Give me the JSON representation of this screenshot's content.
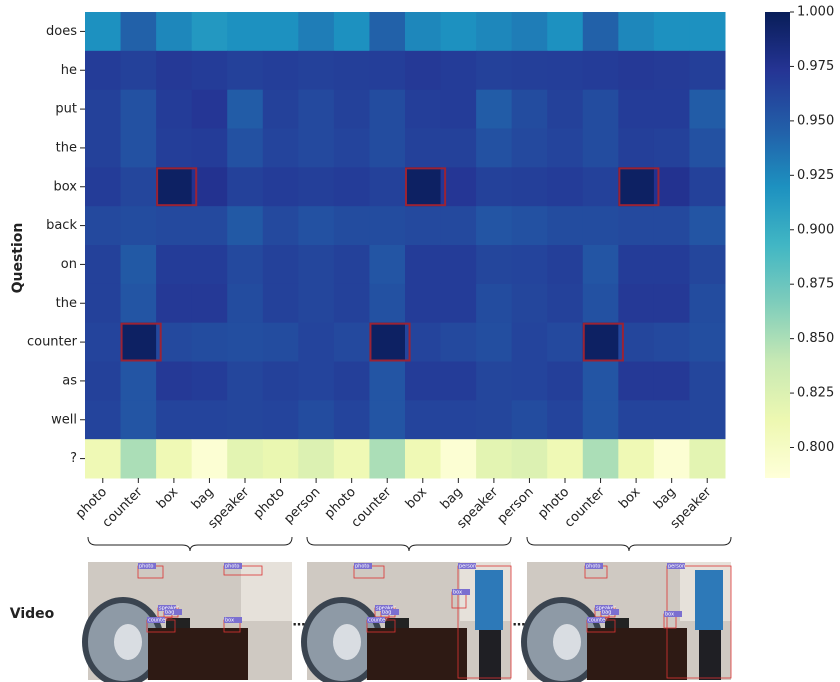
{
  "chart_data": {
    "type": "heatmap",
    "ylabel": "Question",
    "colormap": "YlGnBu",
    "categories": [
      "photo",
      "counter",
      "box",
      "bag",
      "speaker",
      "photo",
      "person",
      "photo",
      "counter",
      "box",
      "bag",
      "speaker",
      "person",
      "photo",
      "counter",
      "box",
      "bag",
      "speaker"
    ],
    "rows": [
      "does",
      "he",
      "put",
      "the",
      "box",
      "back",
      "on",
      "the",
      "counter",
      "as",
      "well",
      "?"
    ],
    "values": [
      [
        0.92,
        0.945,
        0.925,
        0.915,
        0.92,
        0.92,
        0.93,
        0.92,
        0.945,
        0.925,
        0.92,
        0.925,
        0.93,
        0.92,
        0.945,
        0.925,
        0.92,
        0.92
      ],
      [
        0.968,
        0.965,
        0.97,
        0.968,
        0.965,
        0.967,
        0.965,
        0.966,
        0.967,
        0.97,
        0.968,
        0.965,
        0.966,
        0.967,
        0.968,
        0.97,
        0.969,
        0.966
      ],
      [
        0.965,
        0.955,
        0.968,
        0.972,
        0.948,
        0.965,
        0.96,
        0.965,
        0.958,
        0.967,
        0.968,
        0.948,
        0.958,
        0.965,
        0.958,
        0.968,
        0.968,
        0.948
      ],
      [
        0.965,
        0.955,
        0.967,
        0.968,
        0.955,
        0.963,
        0.96,
        0.963,
        0.958,
        0.965,
        0.965,
        0.955,
        0.96,
        0.963,
        0.958,
        0.966,
        0.965,
        0.955
      ],
      [
        0.968,
        0.962,
        0.995,
        0.975,
        0.965,
        0.968,
        0.966,
        0.968,
        0.965,
        0.995,
        0.972,
        0.965,
        0.966,
        0.968,
        0.965,
        0.995,
        0.975,
        0.965
      ],
      [
        0.96,
        0.958,
        0.96,
        0.96,
        0.95,
        0.96,
        0.955,
        0.958,
        0.958,
        0.96,
        0.96,
        0.952,
        0.955,
        0.958,
        0.958,
        0.96,
        0.96,
        0.952
      ],
      [
        0.965,
        0.95,
        0.968,
        0.968,
        0.96,
        0.965,
        0.962,
        0.965,
        0.952,
        0.968,
        0.968,
        0.962,
        0.963,
        0.966,
        0.952,
        0.968,
        0.968,
        0.962
      ],
      [
        0.965,
        0.952,
        0.97,
        0.97,
        0.958,
        0.965,
        0.962,
        0.965,
        0.955,
        0.968,
        0.968,
        0.958,
        0.962,
        0.965,
        0.955,
        0.97,
        0.97,
        0.958
      ],
      [
        0.963,
        0.995,
        0.96,
        0.958,
        0.957,
        0.958,
        0.963,
        0.96,
        0.995,
        0.963,
        0.96,
        0.957,
        0.963,
        0.96,
        0.995,
        0.962,
        0.96,
        0.957
      ],
      [
        0.965,
        0.952,
        0.97,
        0.968,
        0.962,
        0.965,
        0.963,
        0.966,
        0.952,
        0.968,
        0.968,
        0.962,
        0.963,
        0.966,
        0.952,
        0.97,
        0.97,
        0.962
      ],
      [
        0.963,
        0.952,
        0.963,
        0.963,
        0.962,
        0.963,
        0.958,
        0.963,
        0.952,
        0.963,
        0.963,
        0.962,
        0.958,
        0.963,
        0.952,
        0.963,
        0.963,
        0.962
      ],
      [
        0.81,
        0.85,
        0.81,
        0.79,
        0.82,
        0.815,
        0.825,
        0.81,
        0.85,
        0.81,
        0.79,
        0.82,
        0.825,
        0.81,
        0.85,
        0.81,
        0.79,
        0.82
      ]
    ],
    "highlights": [
      [
        4,
        2
      ],
      [
        4,
        9
      ],
      [
        4,
        15
      ],
      [
        8,
        1
      ],
      [
        8,
        8
      ],
      [
        8,
        14
      ]
    ],
    "highlight_color": "#9b2335",
    "zlim": [
      0.786,
      1.0
    ],
    "zticks": [
      {
        "value": 0.8,
        "label": "0.800"
      },
      0.825,
      {
        "value": 0.85,
        "label": "0.850"
      },
      0.875,
      {
        "value": 0.9,
        "label": "0.900"
      },
      0.925,
      {
        "value": 0.95,
        "label": "0.950"
      },
      0.975,
      {
        "value": 1.0,
        "label": "1.000"
      }
    ]
  },
  "video": {
    "label": "Video",
    "frames": [
      {
        "boxes": [
          "photo",
          "photo",
          "speaker",
          "bag",
          "counter",
          "box"
        ]
      },
      {
        "boxes": [
          "photo",
          "person",
          "speaker",
          "bag",
          "counter",
          "box"
        ]
      },
      {
        "boxes": [
          "photo",
          "person",
          "speaker",
          "bag",
          "counter",
          "box"
        ]
      }
    ]
  }
}
